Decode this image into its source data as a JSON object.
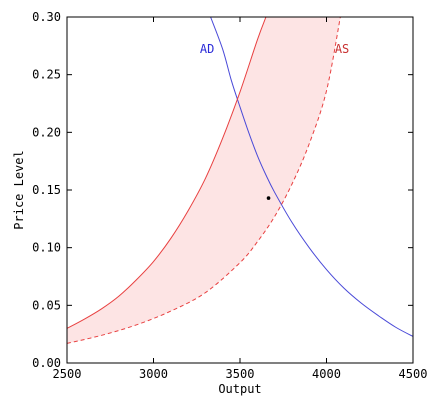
{
  "chart_data": {
    "type": "line",
    "title": "",
    "xlabel": "Output",
    "ylabel": "Price Level",
    "xlim": [
      2500,
      4500
    ],
    "ylim": [
      0,
      0.3
    ],
    "xticks": [
      2500,
      3000,
      3500,
      4000,
      4500
    ],
    "xtick_labels": [
      "2500",
      "3000",
      "3500",
      "4000",
      "4500"
    ],
    "yticks": [
      0,
      0.05,
      0.1,
      0.15,
      0.2,
      0.25,
      0.3
    ],
    "ytick_labels": [
      "0.00",
      "0.05",
      "0.10",
      "0.15",
      "0.20",
      "0.25",
      "0.30"
    ],
    "grid": false,
    "legend": "none",
    "shaded_band": {
      "between": [
        "AS (upper)",
        "AS (lower)"
      ],
      "color": "#fde4e4"
    },
    "series": [
      {
        "name": "AD",
        "color": "#4a4ad8",
        "style": "solid",
        "x": [
          3330,
          3400,
          3450,
          3500,
          3550,
          3600,
          3650,
          3700,
          3800,
          3900,
          4000,
          4100,
          4200,
          4300,
          4400,
          4500
        ],
        "y": [
          0.3,
          0.272,
          0.245,
          0.222,
          0.2,
          0.18,
          0.163,
          0.148,
          0.122,
          0.1,
          0.081,
          0.065,
          0.052,
          0.041,
          0.031,
          0.023
        ]
      },
      {
        "name": "AS (upper)",
        "color": "#e84040",
        "style": "solid",
        "x": [
          2500,
          2600,
          2700,
          2800,
          2900,
          3000,
          3100,
          3200,
          3300,
          3400,
          3500,
          3600,
          3650
        ],
        "y": [
          0.03,
          0.038,
          0.047,
          0.058,
          0.072,
          0.088,
          0.108,
          0.132,
          0.16,
          0.195,
          0.235,
          0.28,
          0.3
        ]
      },
      {
        "name": "AS (lower)",
        "color": "#e84040",
        "style": "dashed",
        "x": [
          2500,
          2700,
          2900,
          3100,
          3300,
          3500,
          3600,
          3700,
          3800,
          3900,
          4000,
          4080
        ],
        "y": [
          0.017,
          0.024,
          0.033,
          0.045,
          0.061,
          0.087,
          0.105,
          0.127,
          0.155,
          0.19,
          0.236,
          0.3
        ]
      }
    ],
    "points": [
      {
        "x": 3665,
        "y": 0.143,
        "color": "#000000"
      }
    ],
    "annotations": [
      {
        "text": "AD",
        "x": 3310,
        "y": 0.269,
        "color": "#2a2ad8"
      },
      {
        "text": "AS",
        "x": 4090,
        "y": 0.269,
        "color": "#c83030"
      }
    ]
  }
}
